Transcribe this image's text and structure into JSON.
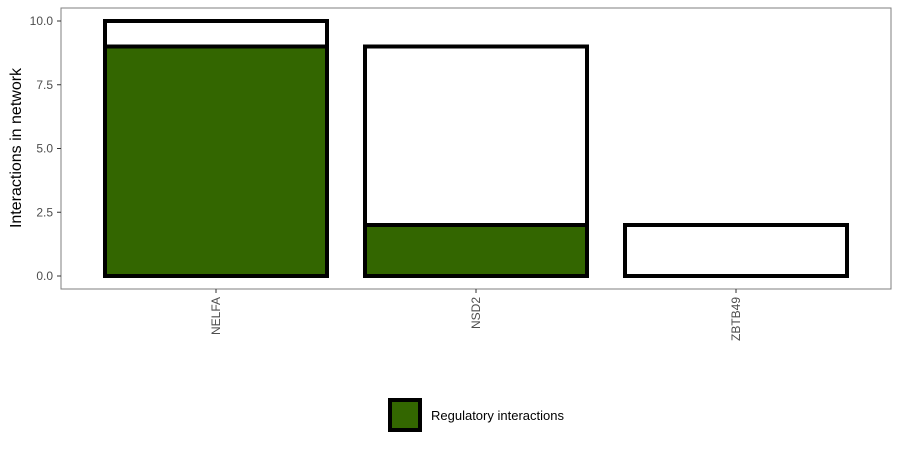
{
  "chart_data": {
    "type": "bar",
    "stacked": false,
    "title": "",
    "xlabel": "",
    "ylabel": "Interactions in network",
    "ylim": [
      0,
      10
    ],
    "yticks": [
      0,
      2.5,
      5,
      7.5,
      10
    ],
    "ytick_labels": [
      "0.0",
      "2.5",
      "5.0",
      "7.5",
      "10.0"
    ],
    "categories": [
      "NELFA",
      "NSD2",
      "ZBTB49"
    ],
    "series": [
      {
        "name": "",
        "role": "total",
        "values": [
          10,
          9,
          2
        ],
        "color": "#ffffff"
      },
      {
        "name": "Regulatory interactions",
        "role": "regulatory",
        "values": [
          9,
          2,
          0
        ],
        "color": "#336600"
      }
    ],
    "grid": false,
    "legend": {
      "position": "bottom",
      "entries": [
        "Regulatory interactions"
      ]
    }
  },
  "colors": {
    "bar_outline": "#000000",
    "panel_border": "#7f7f7f",
    "regulatory_fill": "#336600"
  }
}
